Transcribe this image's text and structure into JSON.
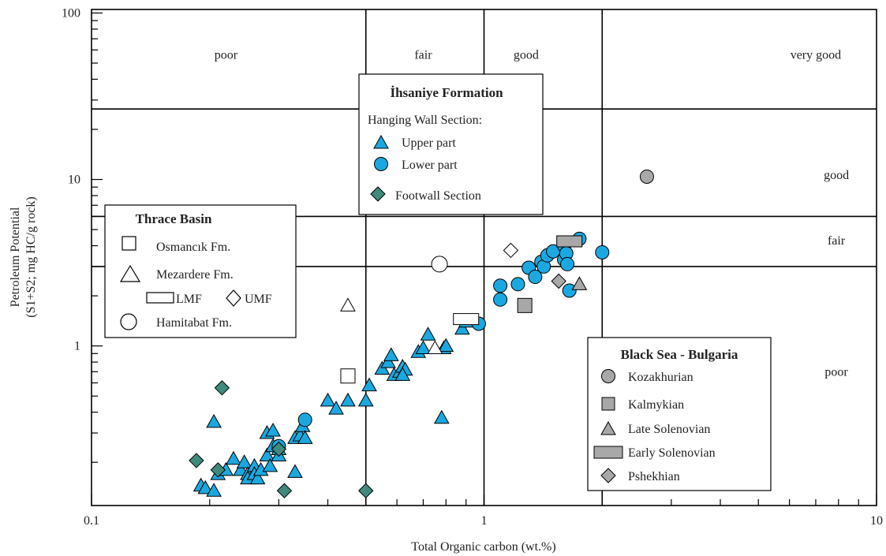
{
  "chart_data": {
    "type": "scatter",
    "x_scale": "log",
    "y_scale": "log",
    "xlim": [
      0.1,
      10
    ],
    "ylim": [
      0.11,
      105
    ],
    "xlabel": "Total Organic carbon (wt.%)",
    "ylabel_lines": [
      "Petroleum Potential",
      "(S1+S2; mg HC/g rock)"
    ],
    "x_tick_labels": [
      {
        "v": 0.1,
        "label": "0.1"
      },
      {
        "v": 1,
        "label": "1"
      },
      {
        "v": 10,
        "label": "10"
      }
    ],
    "y_tick_labels": [
      {
        "v": 1,
        "label": "1"
      },
      {
        "v": 10,
        "label": "10"
      },
      {
        "v": 100,
        "label": "100"
      }
    ],
    "grid": {
      "vertical_lines": [
        0.5,
        1,
        2
      ],
      "horizontal_lines": [
        3,
        6,
        26.5
      ]
    },
    "region_labels": [
      {
        "text": "poor",
        "x": 0.22,
        "y": 56
      },
      {
        "text": "fair",
        "x": 0.7,
        "y": 56
      },
      {
        "text": "good",
        "x": 1.28,
        "y": 56
      },
      {
        "text": "very good",
        "x": 7.0,
        "y": 56
      },
      {
        "text": "good",
        "x": 7.9,
        "y": 10.6
      },
      {
        "text": "fair",
        "x": 7.9,
        "y": 4.3
      },
      {
        "text": "poor",
        "x": 7.9,
        "y": 0.7
      }
    ],
    "legend_ihsaniye": {
      "title": "İhsaniye Formation",
      "subtitle": "Hanging Wall Section:",
      "items": [
        "Upper part",
        "Lower part",
        "Footwall Section"
      ]
    },
    "legend_thrace": {
      "title": "Thrace Basin",
      "items": [
        "Osmancık Fm.",
        "Mezardere Fm.",
        "LMF",
        "UMF",
        "Hamitabat Fm."
      ]
    },
    "legend_blacksea": {
      "title": "Black Sea - Bulgaria",
      "items": [
        "Kozakhurian",
        "Kalmykian",
        "Late Solenovian",
        "Early Solenovian",
        "Pshekhian"
      ]
    },
    "series": [
      {
        "name": "Upper part",
        "marker": "triangle",
        "fill": "#1ba8e0",
        "points": [
          [
            0.19,
            0.145
          ],
          [
            0.195,
            0.14
          ],
          [
            0.205,
            0.35
          ],
          [
            0.205,
            0.135
          ],
          [
            0.21,
            0.17
          ],
          [
            0.22,
            0.18
          ],
          [
            0.23,
            0.21
          ],
          [
            0.24,
            0.18
          ],
          [
            0.245,
            0.2
          ],
          [
            0.25,
            0.17
          ],
          [
            0.25,
            0.16
          ],
          [
            0.26,
            0.19
          ],
          [
            0.26,
            0.17
          ],
          [
            0.265,
            0.16
          ],
          [
            0.27,
            0.18
          ],
          [
            0.28,
            0.3
          ],
          [
            0.28,
            0.22
          ],
          [
            0.285,
            0.19
          ],
          [
            0.29,
            0.31
          ],
          [
            0.29,
            0.25
          ],
          [
            0.3,
            0.24
          ],
          [
            0.3,
            0.22
          ],
          [
            0.33,
            0.28
          ],
          [
            0.34,
            0.29
          ],
          [
            0.345,
            0.33
          ],
          [
            0.35,
            0.28
          ],
          [
            0.33,
            0.175
          ],
          [
            0.4,
            0.47
          ],
          [
            0.42,
            0.42
          ],
          [
            0.45,
            0.47
          ],
          [
            0.5,
            0.47
          ],
          [
            0.51,
            0.58
          ],
          [
            0.55,
            0.73
          ],
          [
            0.57,
            0.8
          ],
          [
            0.58,
            0.88
          ],
          [
            0.59,
            0.67
          ],
          [
            0.61,
            0.7
          ],
          [
            0.62,
            0.75
          ],
          [
            0.63,
            0.72
          ],
          [
            0.68,
            0.92
          ],
          [
            0.7,
            0.97
          ],
          [
            0.72,
            1.17
          ],
          [
            0.78,
            0.37
          ],
          [
            0.79,
            0.97
          ],
          [
            0.8,
            1.0
          ],
          [
            0.88,
            1.27
          ],
          [
            0.9,
            1.4
          ],
          [
            0.62,
            0.67
          ]
        ]
      },
      {
        "name": "Lower part",
        "marker": "circle",
        "fill": "#1ba8e0",
        "points": [
          [
            0.3,
            0.25
          ],
          [
            0.35,
            0.36
          ],
          [
            0.97,
            1.36
          ],
          [
            1.1,
            2.3
          ],
          [
            1.1,
            1.9
          ],
          [
            1.22,
            2.35
          ],
          [
            1.3,
            2.95
          ],
          [
            1.35,
            2.6
          ],
          [
            1.4,
            3.2
          ],
          [
            1.42,
            3.0
          ],
          [
            1.45,
            3.5
          ],
          [
            1.5,
            3.7
          ],
          [
            1.6,
            3.3
          ],
          [
            1.6,
            4.0
          ],
          [
            1.62,
            3.6
          ],
          [
            1.63,
            3.1
          ],
          [
            1.65,
            2.15
          ],
          [
            1.75,
            4.4
          ],
          [
            2.0,
            3.65
          ]
        ]
      },
      {
        "name": "Footwall Section",
        "marker": "diamond",
        "fill": "#3f8a7c",
        "points": [
          [
            0.185,
            0.205
          ],
          [
            0.21,
            0.18
          ],
          [
            0.215,
            0.56
          ],
          [
            0.3,
            0.24
          ],
          [
            0.31,
            0.135
          ],
          [
            0.5,
            0.135
          ]
        ]
      },
      {
        "name": "Osmancık Fm.",
        "marker": "square-open",
        "fill": "none",
        "points": [
          [
            0.45,
            0.66
          ]
        ]
      },
      {
        "name": "Mezardere Fm.",
        "marker": "triangle-open",
        "fill": "none",
        "points": [
          [
            0.45,
            1.75
          ],
          [
            0.75,
            0.97
          ]
        ]
      },
      {
        "name": "LMF",
        "marker": "rect-open",
        "fill": "none",
        "points": [
          [
            0.9,
            1.45
          ]
        ]
      },
      {
        "name": "UMF",
        "marker": "diamond-open",
        "fill": "none",
        "points": [
          [
            1.17,
            3.75
          ]
        ]
      },
      {
        "name": "Hamitabat Fm.",
        "marker": "circle-open",
        "fill": "none",
        "points": [
          [
            0.77,
            3.1
          ]
        ]
      },
      {
        "name": "Kozakhurian",
        "marker": "circle",
        "fill": "#a8a8a8",
        "points": [
          [
            2.6,
            10.4
          ]
        ]
      },
      {
        "name": "Kalmykian",
        "marker": "square",
        "fill": "#a8a8a8",
        "points": [
          [
            1.27,
            1.75
          ]
        ]
      },
      {
        "name": "Late Solenovian",
        "marker": "triangle",
        "fill": "#a8a8a8",
        "points": [
          [
            1.75,
            2.35
          ]
        ]
      },
      {
        "name": "Early Solenovian",
        "marker": "rect",
        "fill": "#a8a8a8",
        "points": [
          [
            1.65,
            4.25
          ]
        ]
      },
      {
        "name": "Pshekhian",
        "marker": "diamond",
        "fill": "#a8a8a8",
        "points": [
          [
            1.55,
            2.45
          ]
        ]
      }
    ]
  }
}
